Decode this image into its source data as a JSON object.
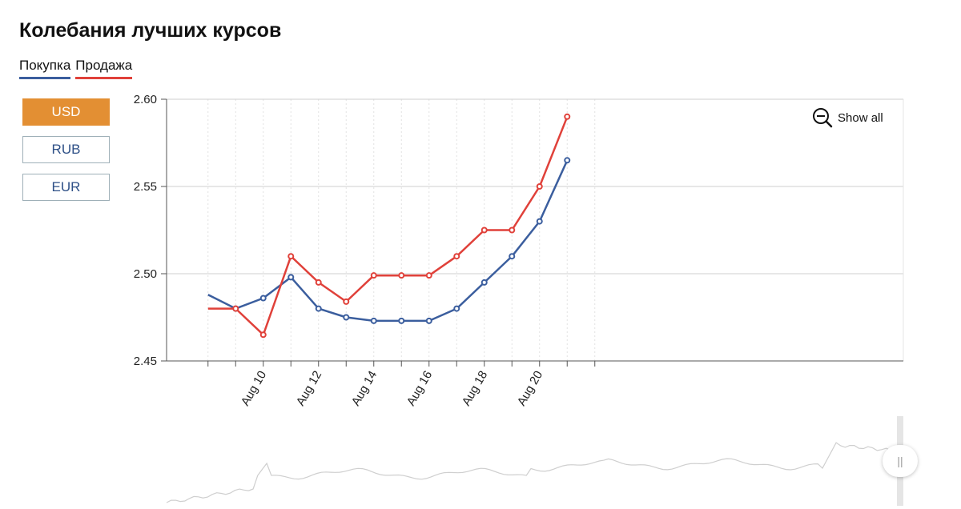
{
  "title": "Колебания лучших курсов",
  "legend": {
    "buy": "Покупка",
    "sell": "Продажа"
  },
  "currencies": [
    {
      "label": "USD",
      "active": true
    },
    {
      "label": "RUB",
      "active": false
    },
    {
      "label": "EUR",
      "active": false
    }
  ],
  "show_all": "Show all",
  "colors": {
    "buy": "#3b5e9e",
    "sell": "#e0413a",
    "active_button": "#e38f33"
  },
  "chart_data": {
    "type": "line",
    "ylim": [
      2.45,
      2.6
    ],
    "yticks": [
      "2.60",
      "2.55",
      "2.50",
      "2.45"
    ],
    "xticks": [
      "Aug 10",
      "Aug 12",
      "Aug 14",
      "Aug 16",
      "Aug 18",
      "Aug 20"
    ],
    "grid": true,
    "series": [
      {
        "name": "Покупка",
        "x": [
          "Aug 8",
          "Aug 9",
          "Aug 10",
          "Aug 11",
          "Aug 12",
          "Aug 13",
          "Aug 14",
          "Aug 15",
          "Aug 16",
          "Aug 17",
          "Aug 18",
          "Aug 19",
          "Aug 20",
          "Aug 21"
        ],
        "values": [
          2.488,
          2.48,
          2.486,
          2.498,
          2.48,
          2.475,
          2.473,
          2.473,
          2.473,
          2.48,
          2.495,
          2.51,
          2.53,
          2.565
        ]
      },
      {
        "name": "Продажа",
        "x": [
          "Aug 8",
          "Aug 9",
          "Aug 10",
          "Aug 11",
          "Aug 12",
          "Aug 13",
          "Aug 14",
          "Aug 15",
          "Aug 16",
          "Aug 17",
          "Aug 18",
          "Aug 19",
          "Aug 20",
          "Aug 21"
        ],
        "values": [
          2.48,
          2.48,
          2.465,
          2.51,
          2.495,
          2.484,
          2.499,
          2.499,
          2.499,
          2.51,
          2.525,
          2.525,
          2.55,
          2.59
        ]
      }
    ]
  }
}
